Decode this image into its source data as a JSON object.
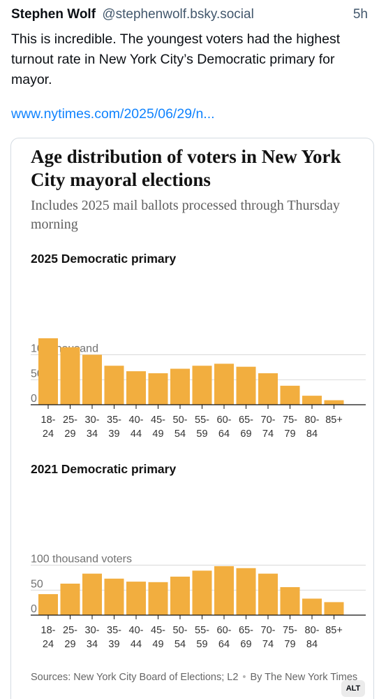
{
  "post": {
    "author_name": "Stephen Wolf",
    "author_handle": "@stephenwolf.bsky.social",
    "time": "5h",
    "text": "This is incredible. The youngest voters had the highest turnout rate in New York City’s Democratic primary for mayor.",
    "link_text": "www.nytimes.com/2025/06/29/n..."
  },
  "embed": {
    "title": "Age distribution of voters in New York City mayoral elections",
    "subtitle": "Includes 2025 mail ballots processed through Thursday morning",
    "source": "Sources: New York City Board of Elections; L2",
    "byline": "By The New York Times",
    "alt_label": "ALT"
  },
  "colors": {
    "bar": "#f2ae3f",
    "link": "#1083fe",
    "handle": "#42576c"
  },
  "chart_data": [
    {
      "type": "bar",
      "title": "2025 Democratic primary",
      "ylabel": "100 thousand",
      "unit": "thousand voters",
      "categories": [
        [
          "18-",
          "24"
        ],
        [
          "25-",
          "29"
        ],
        [
          "30-",
          "34"
        ],
        [
          "35-",
          "39"
        ],
        [
          "40-",
          "44"
        ],
        [
          "45-",
          "49"
        ],
        [
          "50-",
          "54"
        ],
        [
          "55-",
          "59"
        ],
        [
          "60-",
          "64"
        ],
        [
          "65-",
          "69"
        ],
        [
          "70-",
          "74"
        ],
        [
          "75-",
          "79"
        ],
        [
          "80-",
          "84"
        ],
        [
          "85+",
          ""
        ]
      ],
      "values": [
        133,
        115,
        100,
        78,
        67,
        63,
        72,
        78,
        82,
        76,
        63,
        38,
        18,
        9
      ],
      "yticks": [
        0,
        50,
        100
      ],
      "ytick_labels": [
        "0",
        "50",
        "100"
      ],
      "ylim": [
        0,
        140
      ],
      "grid": true
    },
    {
      "type": "bar",
      "title": "2021 Democratic primary",
      "ylabel": "100 thousand voters",
      "unit": "thousand voters",
      "categories": [
        [
          "18-",
          "24"
        ],
        [
          "25-",
          "29"
        ],
        [
          "30-",
          "34"
        ],
        [
          "35-",
          "39"
        ],
        [
          "40-",
          "44"
        ],
        [
          "45-",
          "49"
        ],
        [
          "50-",
          "54"
        ],
        [
          "55-",
          "59"
        ],
        [
          "60-",
          "64"
        ],
        [
          "65-",
          "69"
        ],
        [
          "70-",
          "74"
        ],
        [
          "75-",
          "79"
        ],
        [
          "80-",
          "84"
        ],
        [
          "85+",
          ""
        ]
      ],
      "values": [
        42,
        63,
        83,
        73,
        67,
        66,
        77,
        89,
        98,
        94,
        83,
        56,
        33,
        26
      ],
      "yticks": [
        0,
        50,
        100
      ],
      "ytick_labels": [
        "0",
        "50",
        "100"
      ],
      "ylim": [
        0,
        110
      ],
      "grid": true
    }
  ]
}
